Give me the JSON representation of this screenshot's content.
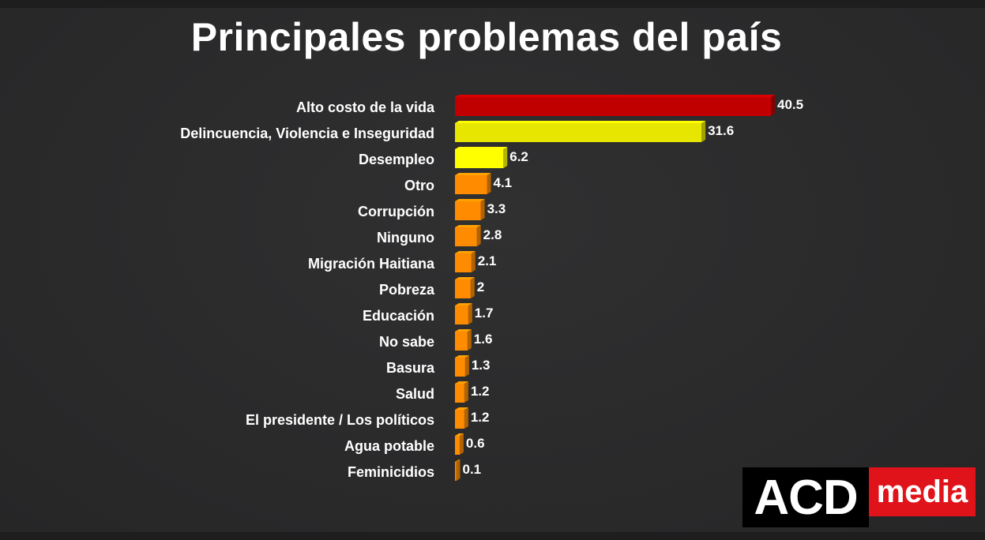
{
  "title": "Principales problemas del país",
  "logo": {
    "left_text": "ACD",
    "right_text": "media"
  },
  "colors": {
    "background": "#2a2a2b",
    "red": "#c00000",
    "yellow": "#e6e600",
    "bright_yellow": "#ffff00",
    "orange": "#ff8c00",
    "logo_red": "#e1131a"
  },
  "chart_data": {
    "type": "bar",
    "orientation": "horizontal",
    "title": "Principales problemas del país",
    "categories": [
      "Alto costo de la vida",
      "Delincuencia, Violencia e Inseguridad",
      "Desempleo",
      "Otro",
      "Corrupción",
      "Ninguno",
      "Migración Haitiana",
      "Pobreza",
      "Educación",
      "No sabe",
      "Basura",
      "Salud",
      "El presidente / Los políticos",
      "Agua potable",
      "Feminicidios"
    ],
    "values": [
      40.5,
      31.6,
      6.2,
      4.1,
      3.3,
      2.8,
      2.1,
      2,
      1.7,
      1.6,
      1.3,
      1.2,
      1.2,
      0.6,
      0.1
    ],
    "value_labels": [
      "40.5",
      "31.6",
      "6.2",
      "4.1",
      "3.3",
      "2.8",
      "2.1",
      "2",
      "1.7",
      "1.6",
      "1.3",
      "1.2",
      "1.2",
      "0.6",
      "0.1"
    ],
    "bar_colors": [
      "#c00000",
      "#e6e600",
      "#ffff00",
      "#ff8c00",
      "#ff8c00",
      "#ff8c00",
      "#ff8c00",
      "#ff8c00",
      "#ff8c00",
      "#ff8c00",
      "#ff8c00",
      "#ff8c00",
      "#ff8c00",
      "#ff8c00",
      "#ff8c00"
    ],
    "xlim": [
      0,
      41
    ],
    "grid": false,
    "legend": "none",
    "data_labels": true
  }
}
